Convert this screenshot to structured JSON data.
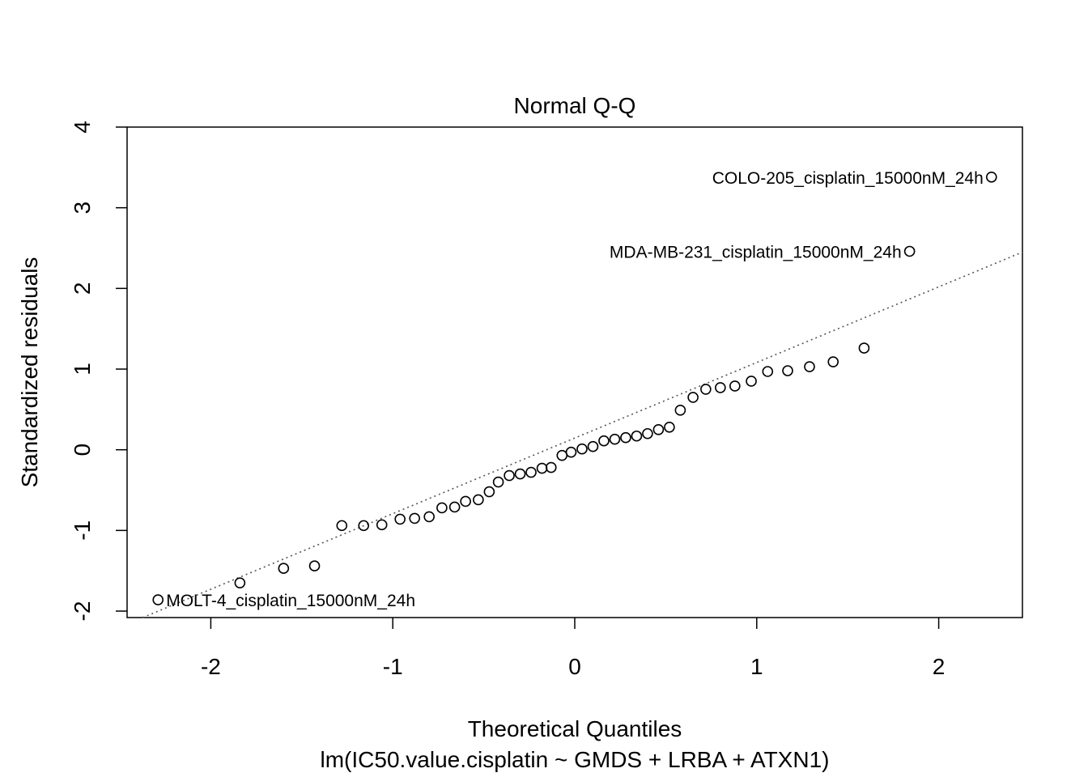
{
  "chart_data": {
    "type": "scatter",
    "title": "Normal Q-Q",
    "xlabel": "Theoretical Quantiles",
    "subtitle": "lm(IC50.value.cisplatin ~ GMDS + LRBA + ATXN1)",
    "ylabel": "Standardized residuals",
    "xlim": [
      -2.46,
      2.46
    ],
    "ylim": [
      -2.08,
      4.0
    ],
    "x_ticks": [
      -2,
      -1,
      0,
      1,
      2
    ],
    "y_ticks": [
      -2,
      -1,
      0,
      1,
      2,
      3,
      4
    ],
    "x_tick_labels": [
      "-2",
      "-1",
      "0",
      "1",
      "2"
    ],
    "y_tick_labels": [
      "-2",
      "-1",
      "0",
      "1",
      "2",
      "3",
      "4"
    ],
    "reference_line": {
      "x": [
        -2.46,
        2.46
      ],
      "y": [
        -2.16,
        2.45
      ],
      "style": "dotted",
      "color": "#555555"
    },
    "series": [
      {
        "name": "residuals",
        "x": [
          -2.29,
          -1.84,
          -1.6,
          -1.43,
          -1.28,
          -1.16,
          -1.06,
          -0.96,
          -0.88,
          -0.8,
          -0.73,
          -0.66,
          -0.6,
          -0.53,
          -0.47,
          -0.42,
          -0.36,
          -0.3,
          -0.24,
          -0.18,
          -0.13,
          -0.07,
          -0.02,
          0.04,
          0.1,
          0.16,
          0.22,
          0.28,
          0.34,
          0.4,
          0.46,
          0.52,
          0.58,
          0.65,
          0.72,
          0.8,
          0.88,
          0.97,
          1.06,
          1.17,
          1.29,
          1.42,
          1.59,
          1.84,
          2.29
        ],
        "y": [
          -1.86,
          -1.65,
          -1.47,
          -1.44,
          -0.94,
          -0.94,
          -0.93,
          -0.86,
          -0.85,
          -0.83,
          -0.72,
          -0.71,
          -0.64,
          -0.62,
          -0.52,
          -0.4,
          -0.32,
          -0.3,
          -0.28,
          -0.23,
          -0.22,
          -0.07,
          -0.03,
          0.01,
          0.04,
          0.11,
          0.13,
          0.15,
          0.17,
          0.2,
          0.25,
          0.28,
          0.49,
          0.65,
          0.75,
          0.77,
          0.79,
          0.85,
          0.97,
          0.98,
          1.03,
          1.09,
          1.26,
          2.46,
          3.38
        ]
      }
    ],
    "annotations": [
      {
        "text": "COLO-205_cisplatin_15000nM_24h",
        "x": 2.29,
        "y": 3.38,
        "side": "left"
      },
      {
        "text": "MDA-MB-231_cisplatin_15000nM_24h",
        "x": 1.84,
        "y": 2.46,
        "side": "left"
      },
      {
        "text": "MOLT-4_cisplatin_15000nM_24h",
        "x": -2.29,
        "y": -1.86,
        "side": "right"
      }
    ]
  }
}
